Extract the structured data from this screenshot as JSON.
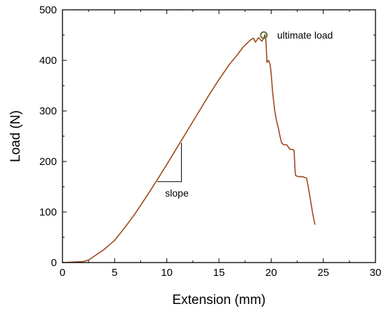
{
  "chart_data": {
    "type": "line",
    "xlabel": "Extension (mm)",
    "ylabel": "Load (N)",
    "xlim": [
      0,
      30
    ],
    "ylim": [
      0,
      500
    ],
    "xticks": [
      0,
      5,
      10,
      15,
      20,
      25,
      30
    ],
    "yticks": [
      0,
      100,
      200,
      300,
      400,
      500
    ],
    "grid": false,
    "legend": "none",
    "line_color": "#9e4a1f",
    "marker_color": "#5b7a3a",
    "series": [
      {
        "x": [
          0,
          1,
          2,
          2.5,
          3,
          4,
          5,
          6,
          7,
          8,
          9,
          10,
          11,
          12,
          13,
          14,
          15,
          16,
          16.8,
          17.3,
          17.8,
          18,
          18.3,
          18.5,
          18.8,
          19.1,
          19.3,
          19.4,
          19.5,
          19.6,
          19.75,
          19.9,
          20,
          20.15,
          20.35,
          20.5,
          20.7,
          20.85,
          21,
          21.2,
          21.5,
          21.8,
          22,
          22.2,
          22.3,
          22.35,
          22.6,
          23,
          23.4,
          23.6,
          23.8,
          24,
          24.2
        ],
        "y": [
          0,
          1,
          2,
          5,
          12,
          26,
          44,
          70,
          98,
          129,
          161,
          194,
          228,
          262,
          296,
          330,
          362,
          392,
          412,
          426,
          436,
          440,
          444,
          436,
          445,
          438,
          444,
          451,
          440,
          396,
          400,
          392,
          375,
          335,
          300,
          282,
          265,
          250,
          237,
          233,
          233,
          224,
          224,
          222,
          180,
          172,
          170,
          170,
          167,
          145,
          120,
          95,
          75
        ]
      }
    ],
    "annotations": [
      {
        "text": "ultimate load",
        "x": 19.3,
        "y": 450
      },
      {
        "text": "slope",
        "x": 11.4,
        "y": 160,
        "x1": 9.1,
        "y_top": 237
      }
    ]
  }
}
